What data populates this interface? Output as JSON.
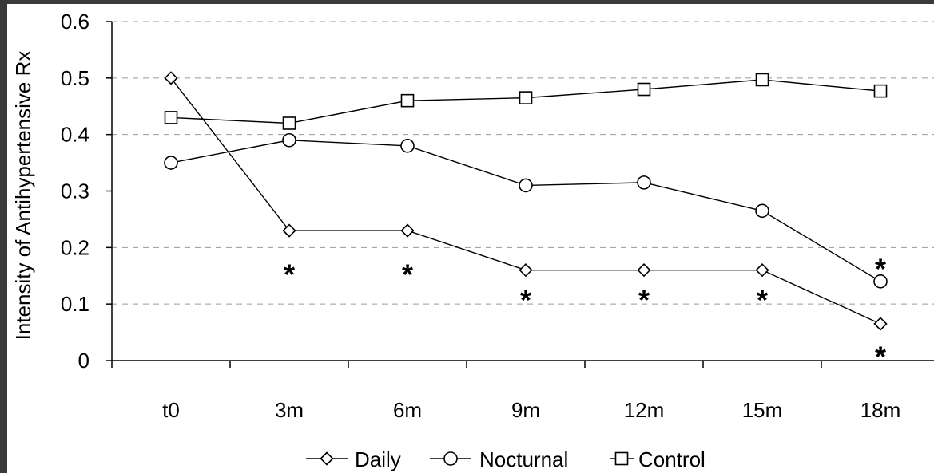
{
  "chart_data": {
    "type": "line",
    "title": "",
    "xlabel": "",
    "ylabel": "Intensity of Antihypertensive Rx",
    "categories": [
      "t0",
      "3m",
      "6m",
      "9m",
      "12m",
      "15m",
      "18m"
    ],
    "ylim": [
      0,
      0.6
    ],
    "yticks": [
      "0",
      "0.1",
      "0.2",
      "0.3",
      "0.4",
      "0.5",
      "0.6"
    ],
    "grid": true,
    "legend_position": "bottom",
    "series": [
      {
        "name": "Daily",
        "marker": "diamond",
        "values": [
          0.5,
          0.23,
          0.23,
          0.16,
          0.16,
          0.16,
          0.065
        ]
      },
      {
        "name": "Nocturnal",
        "marker": "circle",
        "values": [
          0.35,
          0.39,
          0.38,
          0.31,
          0.315,
          0.265,
          0.14
        ]
      },
      {
        "name": "Control",
        "marker": "square",
        "values": [
          0.43,
          0.42,
          0.46,
          0.465,
          0.48,
          0.497,
          0.477
        ]
      }
    ],
    "annotations": [
      {
        "text": "*",
        "category": "3m",
        "y": 0.16
      },
      {
        "text": "*",
        "category": "6m",
        "y": 0.16
      },
      {
        "text": "*",
        "category": "9m",
        "y": 0.115
      },
      {
        "text": "*",
        "category": "12m",
        "y": 0.115
      },
      {
        "text": "*",
        "category": "15m",
        "y": 0.115
      },
      {
        "text": "*",
        "category": "18m",
        "y": 0.17
      },
      {
        "text": "*",
        "category": "18m",
        "y": 0.015
      }
    ]
  }
}
